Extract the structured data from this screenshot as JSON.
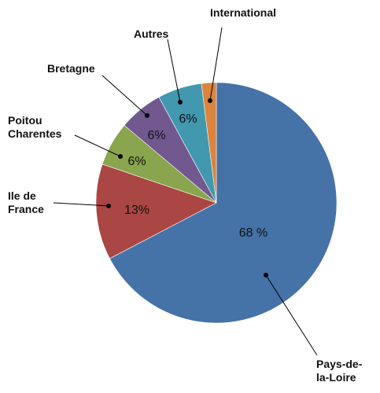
{
  "chart_data": {
    "type": "pie",
    "title": "",
    "slices": [
      {
        "label": "Pays-de-la-Loire",
        "label_lines": [
          "Pays-de-",
          "la-Loire"
        ],
        "value": 68,
        "value_label": "68 %",
        "color": "#4572A7"
      },
      {
        "label": "Ile de France",
        "label_lines": [
          "Ile de",
          "France"
        ],
        "value": 13,
        "value_label": "13%",
        "color": "#AA4643"
      },
      {
        "label": "Poitou Charentes",
        "label_lines": [
          "Poitou",
          "Charentes"
        ],
        "value": 6,
        "value_label": "6%",
        "color": "#89A54E"
      },
      {
        "label": "Bretagne",
        "label_lines": [
          "Bretagne"
        ],
        "value": 6,
        "value_label": "6%",
        "color": "#71588F"
      },
      {
        "label": "Autres",
        "label_lines": [
          "Autres"
        ],
        "value": 6,
        "value_label": "6%",
        "color": "#4198AF"
      },
      {
        "label": "International",
        "label_lines": [
          "International"
        ],
        "value": 2,
        "value_label": "",
        "color": "#DB843D"
      }
    ],
    "start_angle_deg": 0,
    "direction": "clockwise",
    "legend": "none"
  }
}
